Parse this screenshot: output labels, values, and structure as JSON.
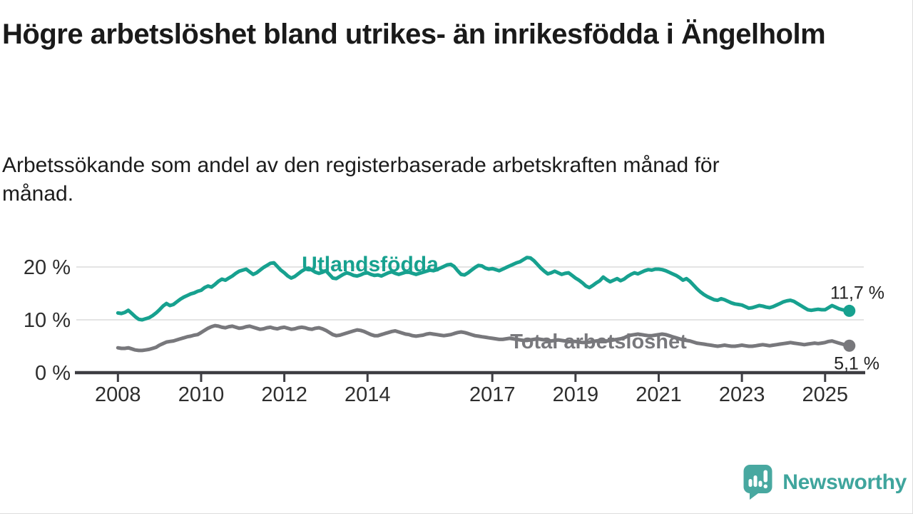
{
  "header": {
    "title": "Högre arbetslöshet bland utrikes- än inrikesfödda i Ängelholm",
    "subtitle": "Arbetssökande som andel av den registerbaserade arbetskraften månad för månad."
  },
  "footer": {
    "brand": "Newsworthy"
  },
  "colors": {
    "accent_teal": "#17a18f",
    "series_gray": "#78787c",
    "logo": "#48a8a0",
    "axis": "#3d3d42",
    "gridline": "#dcdcdc",
    "text_dark": "#1a1a1a"
  },
  "chart_data": {
    "type": "line",
    "title": "Högre arbetslöshet bland utrikes- än inrikesfödda i Ängelholm",
    "subtitle": "Arbetssökande som andel av den registerbaserade arbetskraften månad för månad.",
    "xlabel": "",
    "ylabel": "",
    "grid": "horizontal",
    "legend_position": "inline-labels",
    "x_start": 2008.0,
    "x_step": "monthly",
    "xlim": [
      2007.0,
      2025.93
    ],
    "ylim": [
      0,
      23.5
    ],
    "x_ticks": [
      {
        "value": 2008,
        "label": "2008"
      },
      {
        "value": 2010,
        "label": "2010"
      },
      {
        "value": 2012,
        "label": "2012"
      },
      {
        "value": 2014,
        "label": "2014"
      },
      {
        "value": 2017,
        "label": "2017"
      },
      {
        "value": 2019,
        "label": "2019"
      },
      {
        "value": 2021,
        "label": "2021"
      },
      {
        "value": 2023,
        "label": "2023"
      },
      {
        "value": 2025,
        "label": "2025"
      }
    ],
    "y_ticks": [
      {
        "value": 0,
        "label": "0 %"
      },
      {
        "value": 10,
        "label": "10 %"
      },
      {
        "value": 20,
        "label": "20 %"
      }
    ],
    "series": [
      {
        "name": "Utlandsfödda",
        "color": "#17a18f",
        "end_label": "11,7 %",
        "last_value": 11.7,
        "values": [
          11.3,
          11.2,
          11.4,
          11.8,
          11.2,
          10.6,
          10.1,
          10.0,
          10.2,
          10.4,
          10.8,
          11.3,
          11.9,
          12.6,
          13.1,
          12.7,
          12.9,
          13.4,
          13.9,
          14.3,
          14.6,
          14.9,
          15.1,
          15.4,
          15.6,
          16.1,
          16.4,
          16.2,
          16.7,
          17.3,
          17.7,
          17.5,
          17.9,
          18.3,
          18.8,
          19.2,
          19.4,
          19.6,
          19.1,
          18.6,
          18.9,
          19.4,
          19.9,
          20.3,
          20.7,
          20.8,
          20.1,
          19.4,
          18.9,
          18.3,
          17.9,
          18.2,
          18.7,
          19.2,
          19.6,
          19.8,
          19.4,
          19.0,
          18.8,
          19.0,
          19.3,
          18.6,
          17.9,
          17.8,
          18.2,
          18.6,
          18.9,
          18.7,
          18.4,
          18.3,
          18.5,
          18.8,
          18.9,
          18.6,
          18.4,
          18.5,
          18.3,
          18.6,
          18.9,
          19.1,
          18.8,
          18.6,
          18.8,
          19.0,
          19.0,
          18.8,
          18.6,
          18.8,
          19.0,
          19.2,
          19.4,
          19.3,
          19.5,
          19.8,
          20.1,
          20.4,
          20.5,
          20.1,
          19.3,
          18.6,
          18.5,
          18.9,
          19.4,
          19.9,
          20.3,
          20.2,
          19.8,
          19.6,
          19.7,
          19.5,
          19.3,
          19.6,
          19.9,
          20.2,
          20.5,
          20.8,
          21.0,
          21.4,
          21.8,
          21.7,
          21.2,
          20.5,
          19.8,
          19.2,
          18.7,
          18.9,
          19.2,
          18.9,
          18.6,
          18.8,
          18.9,
          18.4,
          17.9,
          17.5,
          17.0,
          16.4,
          16.1,
          16.5,
          17.0,
          17.4,
          18.1,
          17.6,
          17.2,
          17.5,
          17.8,
          17.4,
          17.7,
          18.2,
          18.6,
          18.9,
          18.7,
          19.0,
          19.3,
          19.5,
          19.4,
          19.6,
          19.6,
          19.5,
          19.3,
          19.0,
          18.7,
          18.4,
          18.0,
          17.5,
          17.8,
          17.3,
          16.6,
          15.9,
          15.3,
          14.8,
          14.4,
          14.1,
          13.8,
          13.7,
          14.0,
          13.8,
          13.5,
          13.2,
          13.0,
          12.9,
          12.8,
          12.5,
          12.2,
          12.3,
          12.5,
          12.7,
          12.6,
          12.4,
          12.3,
          12.5,
          12.8,
          13.1,
          13.4,
          13.6,
          13.7,
          13.5,
          13.1,
          12.7,
          12.3,
          11.9,
          11.8,
          11.9,
          12.0,
          11.9,
          11.9,
          12.3,
          12.7,
          12.4,
          12.1,
          11.9,
          11.8,
          11.7
        ]
      },
      {
        "name": "Total arbetslöshet",
        "color": "#78787c",
        "end_label": "5,1 %",
        "last_value": 5.1,
        "values": [
          4.7,
          4.6,
          4.6,
          4.7,
          4.5,
          4.3,
          4.2,
          4.2,
          4.3,
          4.4,
          4.6,
          4.8,
          5.2,
          5.5,
          5.8,
          5.9,
          6.0,
          6.2,
          6.4,
          6.6,
          6.8,
          6.9,
          7.1,
          7.2,
          7.6,
          8.0,
          8.4,
          8.7,
          8.9,
          8.8,
          8.6,
          8.5,
          8.7,
          8.8,
          8.6,
          8.4,
          8.5,
          8.7,
          8.8,
          8.6,
          8.4,
          8.2,
          8.3,
          8.5,
          8.6,
          8.4,
          8.3,
          8.5,
          8.6,
          8.4,
          8.2,
          8.3,
          8.5,
          8.6,
          8.5,
          8.3,
          8.2,
          8.4,
          8.5,
          8.3,
          8.0,
          7.6,
          7.2,
          7.0,
          7.1,
          7.3,
          7.5,
          7.7,
          7.9,
          8.1,
          8.0,
          7.8,
          7.5,
          7.2,
          7.0,
          7.0,
          7.2,
          7.4,
          7.6,
          7.8,
          7.9,
          7.7,
          7.5,
          7.3,
          7.2,
          7.0,
          6.9,
          7.0,
          7.1,
          7.3,
          7.4,
          7.3,
          7.2,
          7.1,
          7.0,
          7.1,
          7.2,
          7.4,
          7.6,
          7.7,
          7.6,
          7.4,
          7.2,
          7.0,
          6.9,
          6.8,
          6.7,
          6.6,
          6.5,
          6.4,
          6.3,
          6.3,
          6.4,
          6.5,
          6.4,
          6.3,
          6.2,
          6.1,
          6.1,
          6.2,
          6.3,
          6.4,
          6.3,
          6.2,
          6.1,
          6.0,
          6.1,
          6.2,
          6.1,
          6.0,
          5.9,
          5.9,
          5.9,
          5.8,
          5.7,
          5.7,
          5.8,
          5.9,
          6.0,
          6.1,
          6.0,
          6.0,
          6.1,
          6.2,
          6.3,
          6.4,
          6.6,
          6.9,
          7.1,
          7.2,
          7.3,
          7.2,
          7.1,
          7.0,
          7.0,
          7.1,
          7.2,
          7.3,
          7.2,
          7.0,
          6.8,
          6.6,
          6.4,
          6.2,
          6.1,
          6.0,
          5.8,
          5.6,
          5.5,
          5.4,
          5.3,
          5.2,
          5.1,
          5.0,
          5.1,
          5.2,
          5.1,
          5.0,
          5.0,
          5.1,
          5.2,
          5.1,
          5.0,
          5.0,
          5.1,
          5.2,
          5.3,
          5.2,
          5.1,
          5.2,
          5.3,
          5.4,
          5.5,
          5.6,
          5.7,
          5.6,
          5.5,
          5.4,
          5.3,
          5.4,
          5.5,
          5.6,
          5.5,
          5.6,
          5.7,
          5.9,
          6.0,
          5.8,
          5.6,
          5.4,
          5.2,
          5.1
        ]
      }
    ]
  }
}
